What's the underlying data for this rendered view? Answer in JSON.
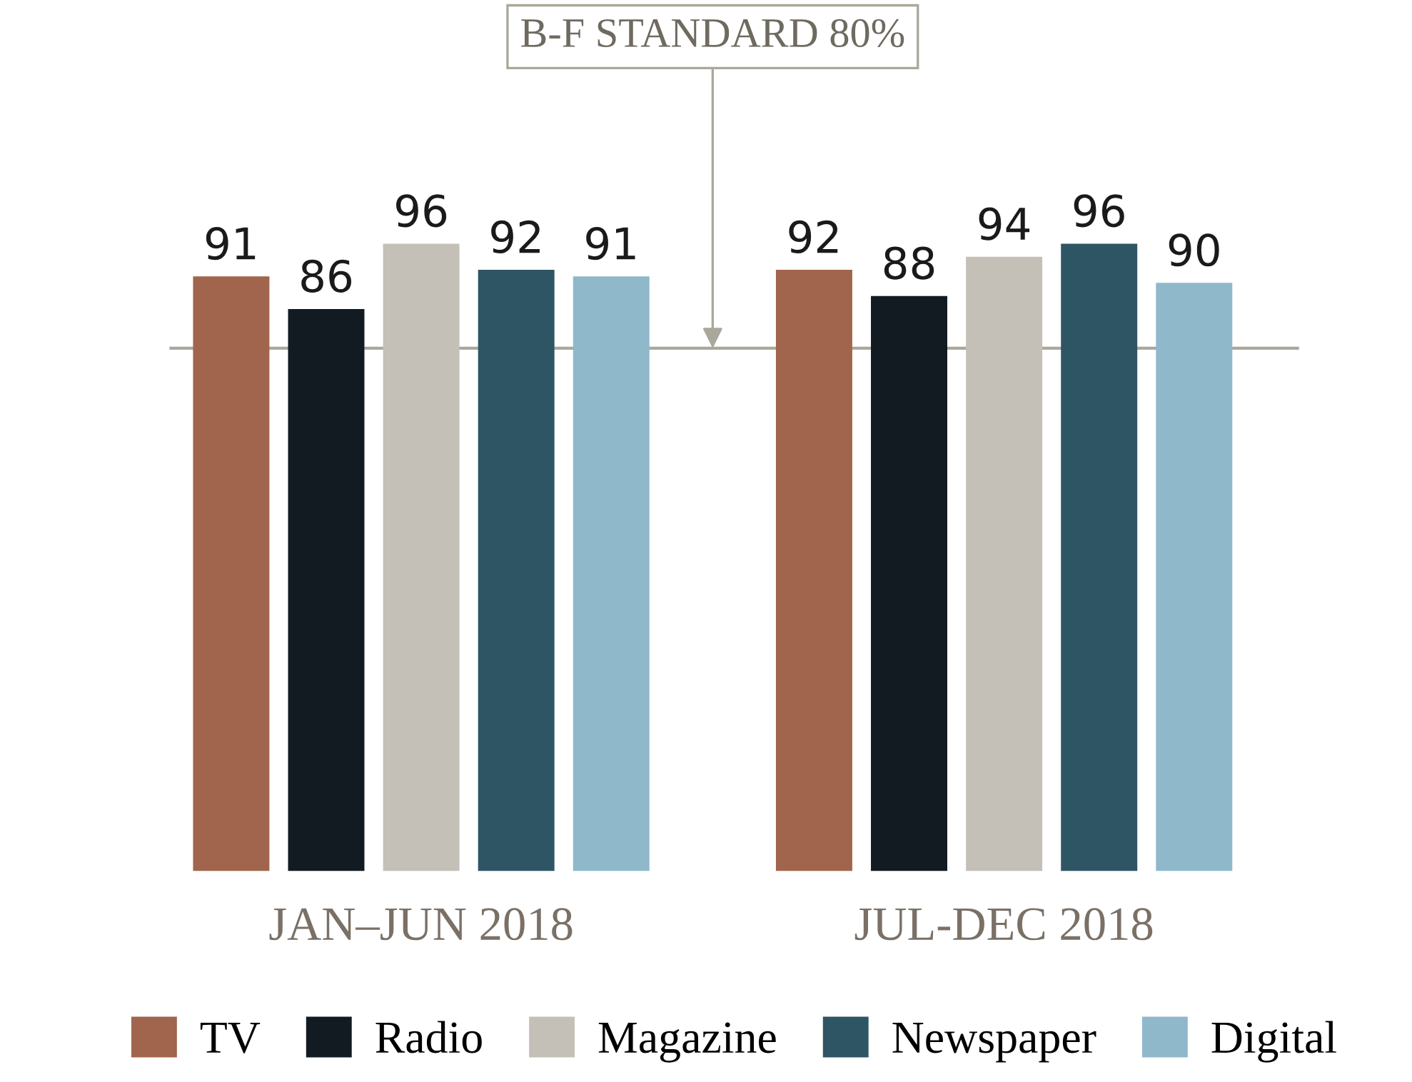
{
  "chart_data": {
    "type": "bar",
    "categories": [
      "JAN–JUN 2018",
      "JUL-DEC 2018"
    ],
    "series": [
      {
        "name": "TV",
        "color": "#a0654c",
        "values": [
          91,
          92
        ]
      },
      {
        "name": "Radio",
        "color": "#131b22",
        "values": [
          86,
          88
        ]
      },
      {
        "name": "Magazine",
        "color": "#c4c0b7",
        "values": [
          96,
          94
        ]
      },
      {
        "name": "Newspaper",
        "color": "#2e5563",
        "values": [
          92,
          96
        ]
      },
      {
        "name": "Digital",
        "color": "#8fb8cb",
        "values": [
          91,
          90
        ]
      }
    ],
    "tick_labels": "x",
    "data_labels": true,
    "legend": "bottom",
    "grid": false,
    "ref_lines": [
      {
        "axis": "y",
        "value": 80,
        "label": "B-F STANDARD 80%",
        "color": "#aaa89a"
      }
    ]
  }
}
